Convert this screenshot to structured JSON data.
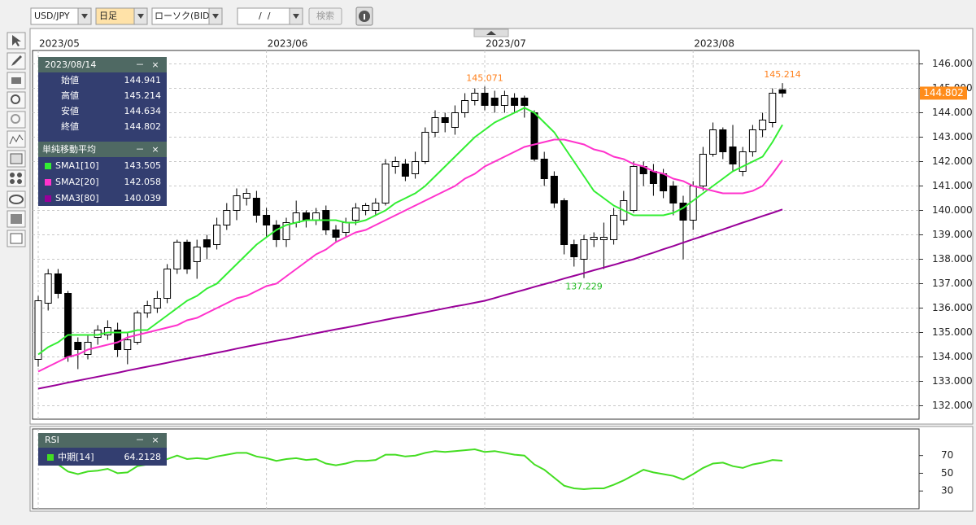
{
  "toolbar": {
    "symbol": "USD/JPY",
    "timeframe": "日足",
    "chart_style": "ローソク(BID)",
    "date": "/  /",
    "search": "検索"
  },
  "window_controls": {
    "minimize": "－",
    "close": "×"
  },
  "info_panel": {
    "date": "2023/08/14",
    "open": "始値",
    "high": "高値",
    "low": "安値",
    "close": "終値",
    "sma_title": "単純移動平均"
  },
  "chart_data": [
    {
      "type": "candlestick",
      "categories": [
        "2023/05",
        null,
        null,
        null,
        null,
        null,
        null,
        null,
        null,
        null,
        null,
        null,
        null,
        null,
        null,
        null,
        null,
        null,
        null,
        null,
        null,
        null,
        null,
        "2023/06",
        null,
        null,
        null,
        null,
        null,
        null,
        null,
        null,
        null,
        null,
        null,
        null,
        null,
        null,
        null,
        null,
        null,
        null,
        null,
        null,
        null,
        "2023/07",
        null,
        null,
        null,
        null,
        null,
        null,
        null,
        null,
        null,
        null,
        null,
        null,
        null,
        null,
        null,
        null,
        null,
        null,
        null,
        null,
        "2023/08",
        null,
        null,
        null,
        null,
        null,
        null,
        null,
        null,
        null
      ],
      "open": [
        133.9,
        136.2,
        137.4,
        136.6,
        134.6,
        134.1,
        134.8,
        134.9,
        135.1,
        134.3,
        134.6,
        135.8,
        136.0,
        136.4,
        137.6,
        138.7,
        137.9,
        138.8,
        138.6,
        139.4,
        140.0,
        140.5,
        140.5,
        139.8,
        139.4,
        138.8,
        139.5,
        139.9,
        139.6,
        140.0,
        139.2,
        139.1,
        139.6,
        140.0,
        140.0,
        140.3,
        141.8,
        141.9,
        141.5,
        142.0,
        143.2,
        143.8,
        143.4,
        144.0,
        144.5,
        144.8,
        144.6,
        144.3,
        144.6,
        144.6,
        144.0,
        142.1,
        141.4,
        140.4,
        138.6,
        138.0,
        138.8,
        138.8,
        138.8,
        139.6,
        140.0,
        141.8,
        141.6,
        141.5,
        141.0,
        140.3,
        139.6,
        141.0,
        142.3,
        143.3,
        142.6,
        141.6,
        142.4,
        143.3,
        143.6,
        144.941
      ],
      "high": [
        136.5,
        137.6,
        137.6,
        136.7,
        134.8,
        134.9,
        135.3,
        135.5,
        135.4,
        135.0,
        135.9,
        136.3,
        136.7,
        137.8,
        138.8,
        138.8,
        138.8,
        139.0,
        139.7,
        140.3,
        140.9,
        140.9,
        140.8,
        140.1,
        139.6,
        139.7,
        140.4,
        140.0,
        140.1,
        140.2,
        139.4,
        139.7,
        140.3,
        140.3,
        140.5,
        142.1,
        142.2,
        142.1,
        142.4,
        143.4,
        144.1,
        144.0,
        144.3,
        144.8,
        145.0,
        145.071,
        144.9,
        144.9,
        144.8,
        144.7,
        144.1,
        142.4,
        141.6,
        140.5,
        138.8,
        139.0,
        139.1,
        139.5,
        140.1,
        140.8,
        142.0,
        142.0,
        141.9,
        141.7,
        141.2,
        140.6,
        141.2,
        142.6,
        143.6,
        143.4,
        143.5,
        142.6,
        143.5,
        144.0,
        145.0,
        145.214
      ],
      "low": [
        133.6,
        135.9,
        136.4,
        133.8,
        133.5,
        133.9,
        134.5,
        134.7,
        134.0,
        133.7,
        134.5,
        135.6,
        135.8,
        136.2,
        137.4,
        137.4,
        137.2,
        138.0,
        138.4,
        139.2,
        139.6,
        140.2,
        139.5,
        138.9,
        138.5,
        138.5,
        139.3,
        139.3,
        139.4,
        139.0,
        138.7,
        138.9,
        139.4,
        139.8,
        139.8,
        140.2,
        141.5,
        141.2,
        141.3,
        141.9,
        143.0,
        143.2,
        143.1,
        143.8,
        144.3,
        144.1,
        144.0,
        144.0,
        144.0,
        143.8,
        142.0,
        141.0,
        140.1,
        138.2,
        137.7,
        137.229,
        138.5,
        137.6,
        138.6,
        139.4,
        139.9,
        141.0,
        140.6,
        140.5,
        139.8,
        138.0,
        139.2,
        140.8,
        142.2,
        142.1,
        141.6,
        141.4,
        142.2,
        143.0,
        143.4,
        144.634
      ],
      "close": [
        136.3,
        137.4,
        136.6,
        134.0,
        134.3,
        134.6,
        135.1,
        135.2,
        134.3,
        134.7,
        135.8,
        136.1,
        136.4,
        137.6,
        138.7,
        137.6,
        138.5,
        138.5,
        139.4,
        140.0,
        140.6,
        140.7,
        139.8,
        139.4,
        138.8,
        139.5,
        139.9,
        139.6,
        139.9,
        139.2,
        138.9,
        139.5,
        140.1,
        140.2,
        140.3,
        141.9,
        142.0,
        141.4,
        142.0,
        143.2,
        143.8,
        143.6,
        144.0,
        144.5,
        144.8,
        144.3,
        144.3,
        144.7,
        144.3,
        144.3,
        142.1,
        141.3,
        140.3,
        138.6,
        138.1,
        138.8,
        138.9,
        138.9,
        139.8,
        140.4,
        141.8,
        141.5,
        141.1,
        140.8,
        140.3,
        139.6,
        141.0,
        142.3,
        143.3,
        142.4,
        141.9,
        142.4,
        143.3,
        143.7,
        144.8,
        144.802
      ],
      "up_color": "#ffffff",
      "down_color": "#000000",
      "wick_color": "#000000",
      "last_price_color": "#ff8c1a",
      "series": [
        {
          "name": "SMA1[10]",
          "color": "#33ee33",
          "values": [
            134.1,
            134.4,
            134.6,
            134.9,
            134.9,
            134.9,
            134.9,
            135.0,
            135.0,
            135.0,
            135.1,
            135.1,
            135.4,
            135.7,
            136.0,
            136.3,
            136.5,
            136.8,
            137.0,
            137.4,
            137.8,
            138.2,
            138.6,
            138.9,
            139.2,
            139.4,
            139.5,
            139.6,
            139.6,
            139.6,
            139.6,
            139.5,
            139.5,
            139.6,
            139.8,
            140.0,
            140.3,
            140.5,
            140.7,
            141.0,
            141.4,
            141.8,
            142.2,
            142.6,
            143.0,
            143.3,
            143.6,
            143.8,
            144.0,
            144.2,
            144.0,
            143.6,
            143.2,
            142.6,
            142.0,
            141.4,
            140.8,
            140.5,
            140.2,
            140.0,
            139.8,
            139.8,
            139.8,
            139.8,
            139.9,
            140.1,
            140.4,
            140.7,
            141.0,
            141.3,
            141.6,
            141.8,
            142.0,
            142.2,
            142.8,
            143.505
          ]
        },
        {
          "name": "SMA2[20]",
          "color": "#ff33cc",
          "values": [
            133.4,
            133.6,
            133.8,
            134.0,
            134.1,
            134.3,
            134.4,
            134.5,
            134.6,
            134.8,
            134.9,
            135.0,
            135.1,
            135.2,
            135.3,
            135.5,
            135.6,
            135.8,
            136.0,
            136.2,
            136.4,
            136.5,
            136.7,
            136.9,
            137.0,
            137.3,
            137.6,
            137.9,
            138.2,
            138.4,
            138.7,
            138.9,
            139.1,
            139.2,
            139.4,
            139.6,
            139.8,
            140.0,
            140.2,
            140.4,
            140.6,
            140.8,
            141.0,
            141.3,
            141.5,
            141.8,
            142.0,
            142.2,
            142.4,
            142.6,
            142.7,
            142.8,
            142.9,
            142.9,
            142.8,
            142.7,
            142.5,
            142.4,
            142.2,
            142.1,
            141.9,
            141.8,
            141.6,
            141.5,
            141.3,
            141.2,
            141.0,
            140.9,
            140.8,
            140.7,
            140.7,
            140.7,
            140.8,
            141.0,
            141.5,
            142.058
          ]
        },
        {
          "name": "SMA3[80]",
          "color": "#990099",
          "values": [
            132.7,
            132.78,
            132.86,
            132.95,
            133.03,
            133.11,
            133.19,
            133.27,
            133.35,
            133.44,
            133.52,
            133.6,
            133.68,
            133.76,
            133.85,
            133.93,
            134.01,
            134.09,
            134.17,
            134.25,
            134.34,
            134.42,
            134.5,
            134.58,
            134.66,
            134.73,
            134.81,
            134.89,
            134.97,
            135.05,
            135.13,
            135.2,
            135.28,
            135.36,
            135.44,
            135.52,
            135.6,
            135.67,
            135.75,
            135.83,
            135.91,
            135.99,
            136.07,
            136.14,
            136.22,
            136.3,
            136.41,
            136.53,
            136.64,
            136.75,
            136.87,
            136.98,
            137.09,
            137.21,
            137.32,
            137.43,
            137.55,
            137.66,
            137.77,
            137.89,
            138.0,
            138.14,
            138.27,
            138.41,
            138.54,
            138.68,
            138.82,
            138.95,
            139.09,
            139.22,
            139.36,
            139.5,
            139.63,
            139.77,
            139.9,
            140.039
          ]
        }
      ],
      "ylim": [
        131.45,
        146.55
      ],
      "yticks": [
        {
          "value": 146,
          "label": "146.000"
        },
        {
          "value": 145,
          "label": "145.000"
        },
        {
          "value": 144,
          "label": "144.000"
        },
        {
          "value": 143,
          "label": "143.000"
        },
        {
          "value": 142,
          "label": "142.000"
        },
        {
          "value": 141,
          "label": "141.000"
        },
        {
          "value": 140,
          "label": "140.000"
        },
        {
          "value": 139,
          "label": "139.000"
        },
        {
          "value": 138,
          "label": "138.000"
        },
        {
          "value": 137,
          "label": "137.000"
        },
        {
          "value": 136,
          "label": "136.000"
        },
        {
          "value": 135,
          "label": "135.000"
        },
        {
          "value": 134,
          "label": "134.000"
        },
        {
          "value": 133,
          "label": "133.000"
        },
        {
          "value": 132,
          "label": "132.000"
        }
      ],
      "grid": true
    },
    {
      "type": "line",
      "title": "RSI",
      "series": [
        {
          "name": "中期[14]",
          "color": "#44dd22",
          "values": [
            66,
            68,
            60,
            52,
            49,
            52,
            53,
            55,
            50,
            51,
            58,
            60,
            61,
            66,
            70,
            66,
            67,
            66,
            69,
            71,
            73,
            73,
            69,
            67,
            64,
            66,
            67,
            65,
            66,
            61,
            59,
            61,
            64,
            64,
            65,
            71,
            71,
            69,
            70,
            73,
            75,
            74,
            75,
            76,
            77,
            74,
            75,
            73,
            71,
            70,
            60,
            54,
            45,
            36,
            33,
            32,
            33,
            33,
            37,
            42,
            48,
            54,
            51,
            49,
            47,
            43,
            49,
            56,
            61,
            62,
            58,
            56,
            60,
            62,
            65,
            64.2128
          ]
        }
      ],
      "ylim": [
        10,
        100
      ],
      "yticks": [
        70,
        50,
        30
      ],
      "grid": true
    }
  ]
}
